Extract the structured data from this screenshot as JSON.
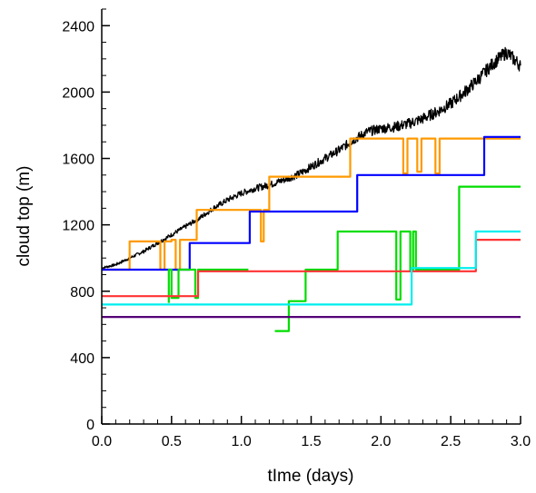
{
  "chart_data": {
    "type": "line",
    "title": "",
    "xlabel": "tIme (days)",
    "ylabel": "cloud top (m)",
    "xlim": [
      0,
      3.0
    ],
    "ylim": [
      0,
      2500
    ],
    "x_ticks": [
      "0.0",
      "0.5",
      "1.0",
      "1.5",
      "2.0",
      "2.5",
      "3.0"
    ],
    "y_ticks": [
      "0",
      "400",
      "800",
      "1200",
      "1600",
      "2000",
      "2400"
    ],
    "grid": false,
    "legend": "none",
    "series": [
      {
        "color": "#000000",
        "style": "noisy",
        "points": [
          [
            0.0,
            940
          ],
          [
            0.1,
            960
          ],
          [
            0.2,
            1000
          ],
          [
            0.3,
            1040
          ],
          [
            0.4,
            1090
          ],
          [
            0.5,
            1140
          ],
          [
            0.6,
            1190
          ],
          [
            0.7,
            1240
          ],
          [
            0.8,
            1300
          ],
          [
            0.9,
            1350
          ],
          [
            1.0,
            1390
          ],
          [
            1.1,
            1420
          ],
          [
            1.2,
            1440
          ],
          [
            1.3,
            1470
          ],
          [
            1.4,
            1500
          ],
          [
            1.5,
            1550
          ],
          [
            1.6,
            1600
          ],
          [
            1.7,
            1650
          ],
          [
            1.8,
            1710
          ],
          [
            1.9,
            1760
          ],
          [
            2.0,
            1780
          ],
          [
            2.1,
            1790
          ],
          [
            2.2,
            1810
          ],
          [
            2.3,
            1840
          ],
          [
            2.4,
            1880
          ],
          [
            2.5,
            1930
          ],
          [
            2.6,
            2000
          ],
          [
            2.7,
            2080
          ],
          [
            2.8,
            2170
          ],
          [
            2.9,
            2240
          ],
          [
            3.0,
            2160
          ]
        ]
      },
      {
        "color": "#ff9900",
        "style": "step",
        "points": [
          [
            0.0,
            930
          ],
          [
            0.2,
            930
          ],
          [
            0.2,
            1100
          ],
          [
            0.42,
            1100
          ],
          [
            0.42,
            930
          ],
          [
            0.45,
            930
          ],
          [
            0.45,
            1100
          ],
          [
            0.5,
            1100
          ],
          [
            0.5,
            1110
          ],
          [
            0.53,
            1110
          ],
          [
            0.53,
            930
          ],
          [
            0.56,
            930
          ],
          [
            0.56,
            1110
          ],
          [
            0.68,
            1110
          ],
          [
            0.68,
            1290
          ],
          [
            1.14,
            1290
          ],
          [
            1.14,
            1100
          ],
          [
            1.16,
            1100
          ],
          [
            1.16,
            1290
          ],
          [
            1.2,
            1290
          ],
          [
            1.2,
            1490
          ],
          [
            1.78,
            1490
          ],
          [
            1.78,
            1720
          ],
          [
            2.16,
            1720
          ],
          [
            2.16,
            1510
          ],
          [
            2.19,
            1510
          ],
          [
            2.19,
            1720
          ],
          [
            2.26,
            1720
          ],
          [
            2.26,
            1520
          ],
          [
            2.29,
            1520
          ],
          [
            2.29,
            1720
          ],
          [
            2.39,
            1720
          ],
          [
            2.39,
            1510
          ],
          [
            2.42,
            1510
          ],
          [
            2.42,
            1720
          ],
          [
            3.0,
            1720
          ]
        ]
      },
      {
        "color": "#0000ff",
        "style": "step",
        "points": [
          [
            0.0,
            930
          ],
          [
            0.63,
            930
          ],
          [
            0.63,
            1090
          ],
          [
            1.06,
            1090
          ],
          [
            1.06,
            1280
          ],
          [
            1.83,
            1280
          ],
          [
            1.83,
            1500
          ],
          [
            2.74,
            1500
          ],
          [
            2.74,
            1730
          ],
          [
            3.0,
            1730
          ]
        ]
      },
      {
        "color": "#00dd00",
        "style": "step",
        "points": [
          [
            1.24,
            560
          ],
          [
            1.34,
            560
          ],
          [
            1.34,
            740
          ],
          [
            1.46,
            740
          ],
          [
            1.46,
            930
          ],
          [
            1.69,
            930
          ],
          [
            1.69,
            1160
          ],
          [
            2.11,
            1160
          ],
          [
            2.11,
            750
          ],
          [
            2.14,
            750
          ],
          [
            2.14,
            1160
          ],
          [
            2.21,
            1160
          ],
          [
            2.21,
            920
          ],
          [
            2.23,
            920
          ],
          [
            2.23,
            1160
          ],
          [
            2.25,
            1160
          ],
          [
            2.25,
            930
          ],
          [
            2.56,
            930
          ],
          [
            2.56,
            1430
          ],
          [
            3.0,
            1430
          ]
        ]
      },
      {
        "color": "#00dd00",
        "style": "step",
        "points": [
          [
            0.48,
            730
          ],
          [
            0.48,
            930
          ],
          [
            0.5,
            930
          ],
          [
            0.5,
            760
          ],
          [
            0.55,
            760
          ],
          [
            0.55,
            930
          ],
          [
            0.67,
            930
          ],
          [
            0.67,
            760
          ],
          [
            0.69,
            760
          ],
          [
            0.69,
            930
          ],
          [
            1.05,
            930
          ]
        ]
      },
      {
        "color": "#ff3333",
        "style": "step",
        "points": [
          [
            0.0,
            770
          ],
          [
            0.69,
            770
          ],
          [
            0.69,
            920
          ],
          [
            2.68,
            920
          ],
          [
            2.68,
            1110
          ],
          [
            3.0,
            1110
          ]
        ]
      },
      {
        "color": "#00eeee",
        "style": "step",
        "points": [
          [
            0.0,
            720
          ],
          [
            2.22,
            720
          ],
          [
            2.22,
            940
          ],
          [
            2.68,
            940
          ],
          [
            2.68,
            1160
          ],
          [
            3.0,
            1160
          ]
        ]
      },
      {
        "color": "#550077",
        "style": "step",
        "points": [
          [
            0.0,
            645
          ],
          [
            3.0,
            645
          ]
        ]
      }
    ]
  }
}
